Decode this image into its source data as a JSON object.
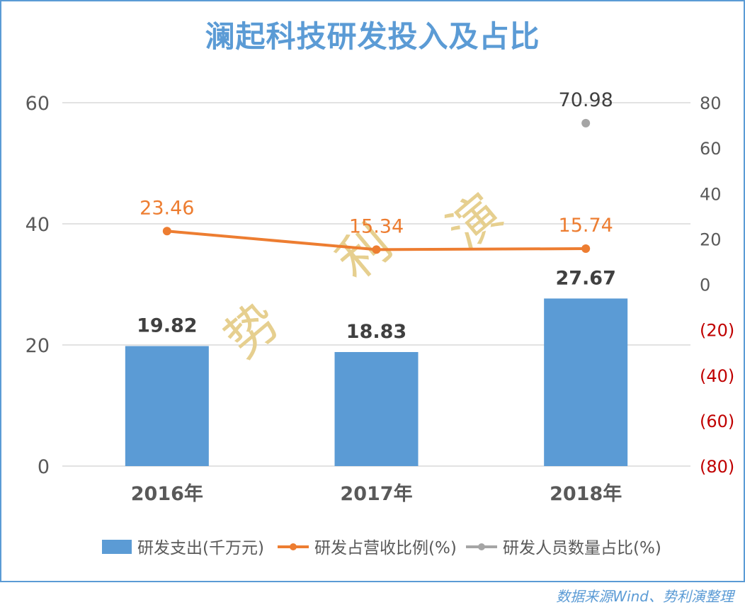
{
  "title": "澜起科技研发投入及占比",
  "footer": "数据来源Wind、势利演整理",
  "watermark": [
    "势",
    "利",
    "演"
  ],
  "colors": {
    "border": "#5b9bd5",
    "bar": "#5b9bd5",
    "line_orange": "#ed7d31",
    "point_gray": "#a5a5a5",
    "grid": "#d9d9d9",
    "axis_text": "#595959",
    "negative_tick": "#c00000",
    "watermark": "#e6cf8f"
  },
  "chart_data": {
    "type": "bar+line",
    "title": "澜起科技研发投入及占比",
    "categories": [
      "2016年",
      "2017年",
      "2018年"
    ],
    "series": [
      {
        "name": "研发支出(千万元)",
        "type": "bar",
        "axis": "left",
        "values": [
          19.82,
          18.83,
          27.67
        ]
      },
      {
        "name": "研发占营收比例(%)",
        "type": "line",
        "axis": "right",
        "values": [
          23.46,
          15.34,
          15.74
        ]
      },
      {
        "name": "研发人员数量占比(%)",
        "type": "line",
        "axis": "right",
        "values": [
          null,
          null,
          70.98
        ]
      }
    ],
    "left_axis": {
      "ticks": [
        "0",
        "20",
        "40",
        "60"
      ],
      "ylim": [
        0,
        60
      ]
    },
    "right_axis": {
      "ticks": [
        "80",
        "60",
        "40",
        "20",
        "0",
        "(20)",
        "(40)",
        "(60)",
        "(80)"
      ],
      "ylim": [
        -80,
        80
      ]
    },
    "grid": true,
    "legend_position": "bottom"
  },
  "legend": [
    {
      "label": "研发支出(千万元)",
      "kind": "bar"
    },
    {
      "label": "研发占营收比例(%)",
      "kind": "line-orange"
    },
    {
      "label": "研发人员数量占比(%)",
      "kind": "line-gray"
    }
  ]
}
